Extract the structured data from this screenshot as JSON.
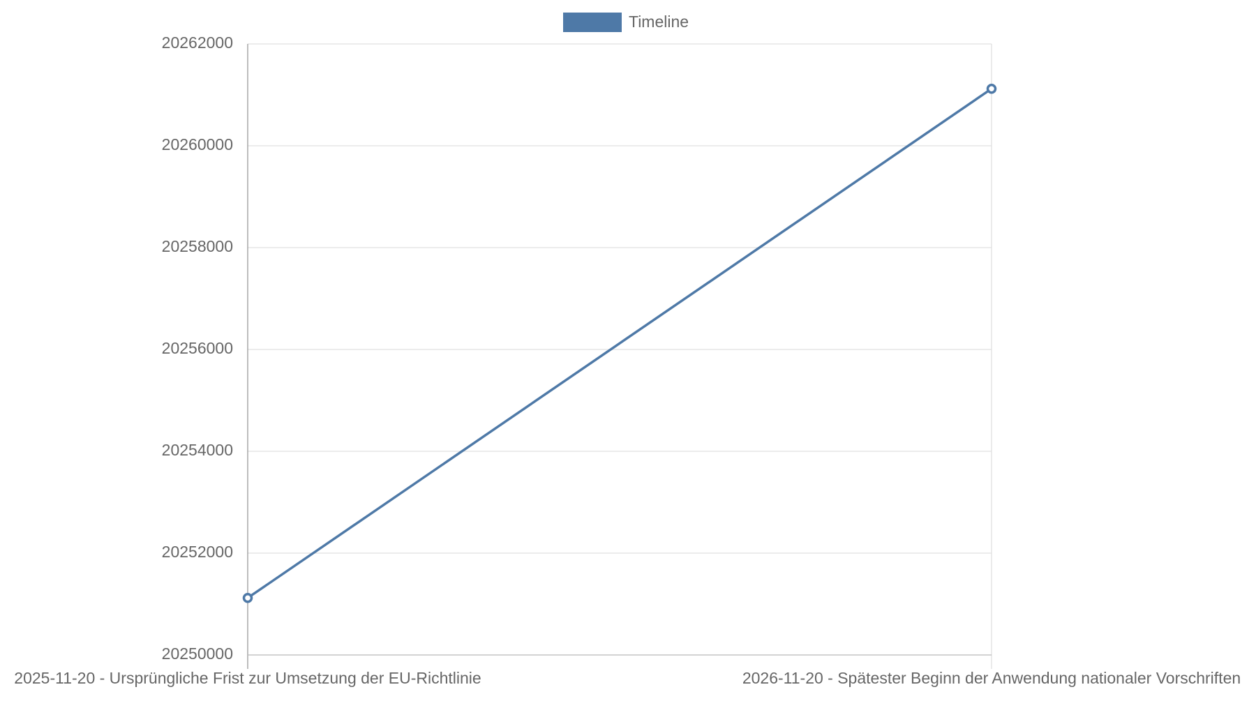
{
  "chart_data": {
    "type": "line",
    "categories": [
      "2025-11-20 - Ursprüngliche Frist zur Umsetzung der EU-Richtlinie",
      "2026-11-20 - Spätester Beginn der Anwendung nationaler Vorschriften"
    ],
    "series": [
      {
        "name": "Timeline",
        "color": "#4e79a7",
        "values": [
          20251120,
          20261120
        ]
      }
    ],
    "ylim": [
      20250000,
      20262000
    ],
    "yticks": [
      20250000,
      20252000,
      20254000,
      20256000,
      20258000,
      20260000,
      20262000
    ],
    "grid": true,
    "legend": "top"
  }
}
